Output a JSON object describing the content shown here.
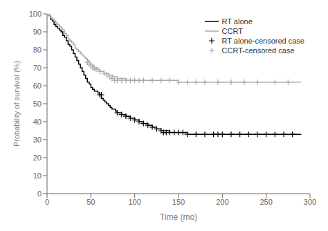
{
  "chart_data": {
    "type": "line",
    "xlabel": "Time (mo)",
    "ylabel": "Probability of survival (%)",
    "xlim": [
      0,
      300
    ],
    "ylim": [
      0,
      100
    ],
    "xticks": [
      0,
      50,
      100,
      150,
      200,
      250,
      300
    ],
    "yticks": [
      0,
      10,
      20,
      30,
      40,
      50,
      60,
      70,
      80,
      90,
      100
    ],
    "legend": "upper right",
    "series": [
      {
        "name": "RT alone",
        "type": "line",
        "line_style": "step",
        "color": "#000000",
        "x": [
          0,
          2,
          4,
          6,
          8,
          10,
          12,
          14,
          16,
          18,
          20,
          22,
          24,
          26,
          28,
          30,
          32,
          34,
          36,
          38,
          40,
          42,
          44,
          46,
          48,
          50,
          52,
          54,
          56,
          58,
          60,
          62,
          64,
          66,
          68,
          70,
          72,
          74,
          76,
          78,
          80,
          85,
          90,
          95,
          100,
          105,
          110,
          115,
          120,
          125,
          130,
          140,
          150,
          160,
          170,
          180,
          190,
          200,
          210,
          220,
          230,
          240,
          250,
          260,
          270,
          280,
          290
        ],
        "values": [
          100,
          99,
          97,
          96,
          94,
          93,
          92,
          91,
          90,
          88,
          87,
          85,
          83,
          82,
          80,
          78,
          76,
          74,
          72,
          70,
          68,
          66,
          64,
          62,
          61,
          59,
          58,
          57,
          57,
          56,
          55,
          53,
          52,
          51,
          50,
          49,
          48,
          47,
          47,
          46,
          45,
          44,
          43,
          42,
          41,
          40,
          39,
          38,
          37,
          36,
          35,
          34,
          34,
          33,
          33,
          33,
          33,
          33,
          33,
          33,
          33,
          33,
          33,
          33,
          33,
          33,
          33
        ]
      },
      {
        "name": "CCRT",
        "type": "line",
        "line_style": "step",
        "color": "#aaaaaa",
        "x": [
          0,
          2,
          4,
          6,
          8,
          10,
          12,
          14,
          16,
          18,
          20,
          22,
          24,
          26,
          28,
          30,
          32,
          34,
          36,
          38,
          40,
          42,
          44,
          46,
          48,
          50,
          52,
          54,
          56,
          58,
          60,
          65,
          70,
          75,
          80,
          90,
          100,
          110,
          120,
          130,
          140,
          150,
          160,
          170,
          180,
          190,
          200,
          210,
          220,
          230,
          240,
          250,
          260,
          270,
          280,
          290
        ],
        "values": [
          100,
          99,
          98,
          97,
          96,
          95,
          94,
          93,
          92,
          91,
          89,
          88,
          86,
          85,
          84,
          83,
          81,
          80,
          79,
          78,
          77,
          76,
          75,
          74,
          73,
          72,
          71,
          70,
          70,
          69,
          68,
          67,
          66,
          65,
          64,
          63,
          63,
          63,
          63,
          63,
          63,
          62,
          62,
          62,
          62,
          62,
          62,
          62,
          62,
          62,
          62,
          62,
          62,
          62,
          62,
          62
        ]
      },
      {
        "name": "RT alone-censored case",
        "type": "scatter",
        "marker": "plus",
        "color": "#000000",
        "x": [
          60,
          62,
          80,
          85,
          90,
          95,
          100,
          105,
          110,
          115,
          120,
          125,
          130,
          133,
          136,
          140,
          145,
          150,
          155,
          160,
          170,
          180,
          190,
          195,
          200,
          210,
          220,
          230,
          240,
          250,
          260,
          270,
          280
        ],
        "values": [
          55,
          55,
          45,
          44,
          43,
          42,
          41,
          40,
          39,
          38,
          37,
          36,
          35,
          34,
          34,
          34,
          34,
          34,
          34,
          33,
          33,
          33,
          33,
          33,
          33,
          33,
          33,
          33,
          33,
          33,
          33,
          33,
          33
        ]
      },
      {
        "name": "CCRT-censored case",
        "type": "scatter",
        "marker": "plus",
        "color": "#aaaaaa",
        "x": [
          46,
          48,
          50,
          52,
          54,
          56,
          60,
          65,
          68,
          71,
          74,
          77,
          80,
          85,
          90,
          95,
          100,
          105,
          110,
          120,
          130,
          140,
          150,
          160,
          170,
          180,
          195,
          210,
          225,
          240,
          260,
          275
        ],
        "values": [
          73,
          72,
          71,
          70,
          70,
          69,
          68,
          67,
          66,
          65,
          64,
          63,
          63,
          63,
          63,
          63,
          63,
          63,
          63,
          63,
          63,
          63,
          62,
          62,
          62,
          62,
          62,
          62,
          62,
          62,
          62,
          62
        ]
      }
    ]
  }
}
